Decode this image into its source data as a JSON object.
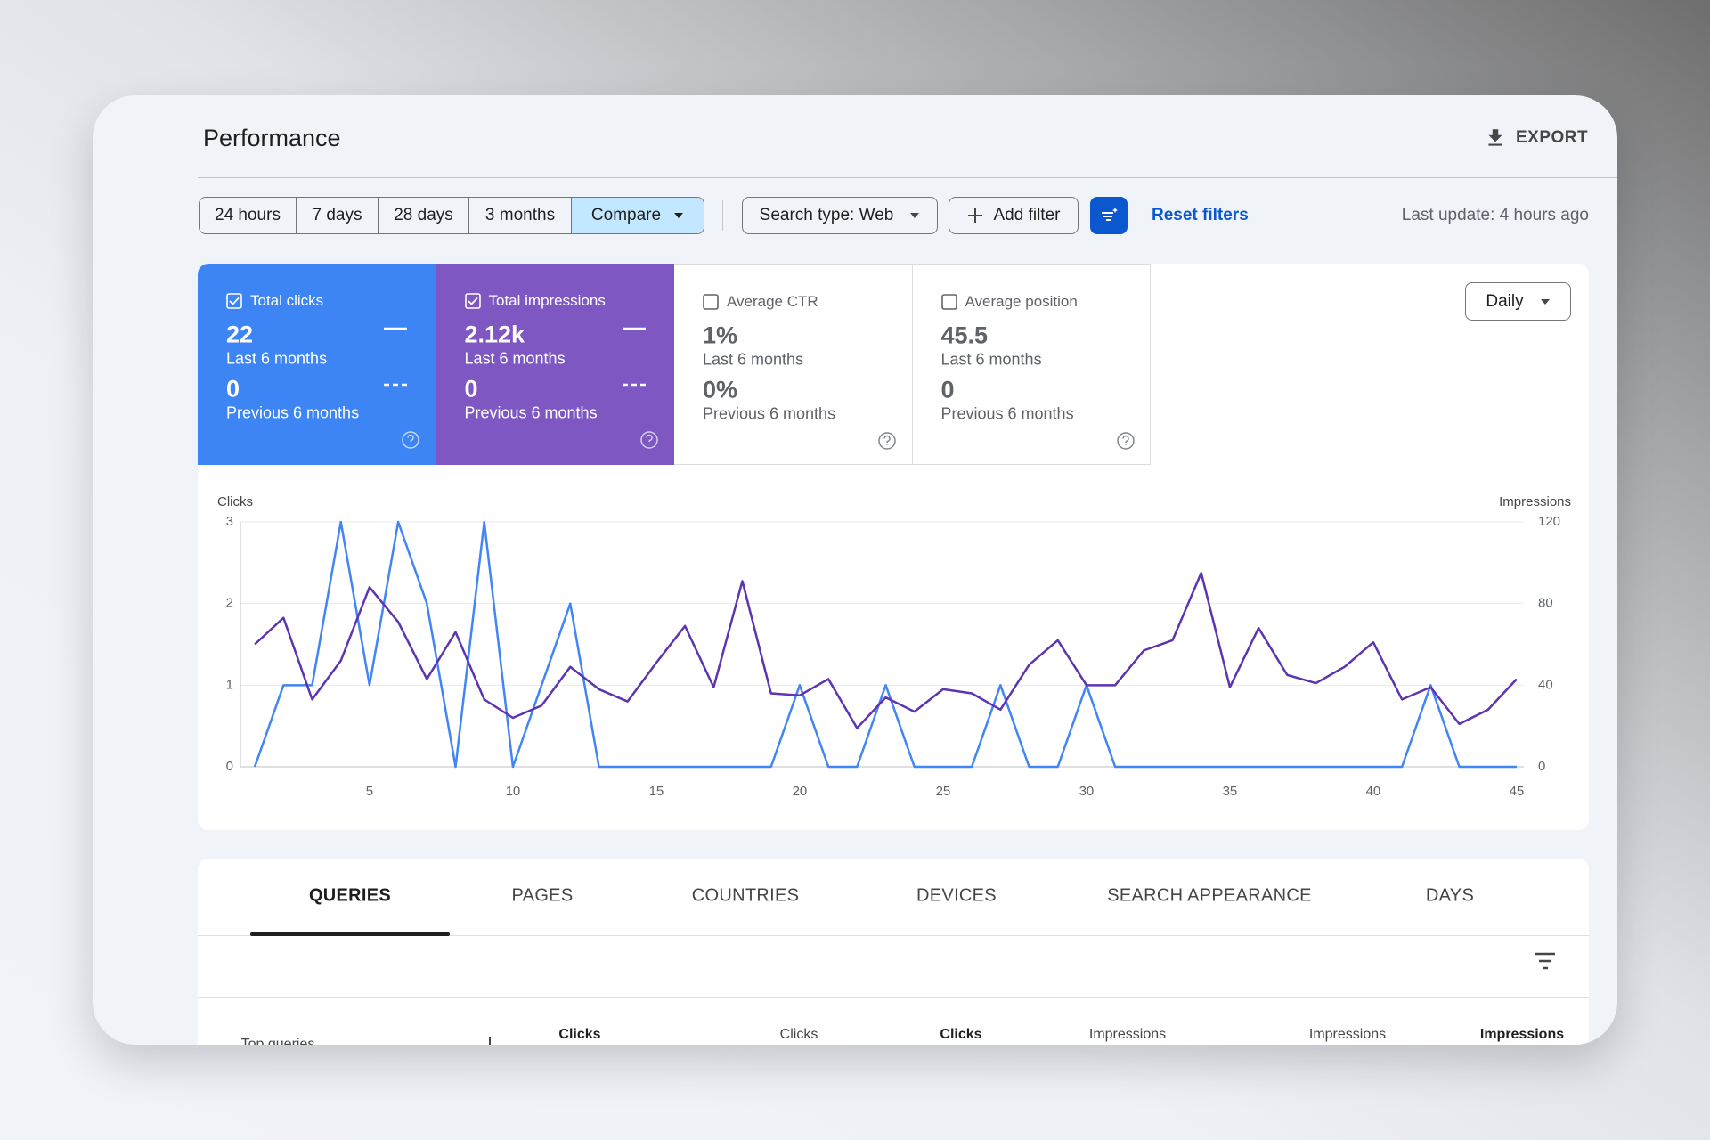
{
  "header": {
    "title": "Performance",
    "export": "EXPORT"
  },
  "filters": {
    "ranges": [
      "24 hours",
      "7 days",
      "28 days",
      "3 months",
      "Compare"
    ],
    "active_range": 4,
    "search_type": "Search type: Web",
    "add_filter": "Add filter",
    "reset": "Reset filters",
    "last_update": "Last update: 4 hours ago"
  },
  "metrics": [
    {
      "label": "Total clicks",
      "value": "22",
      "period": "Last 6 months",
      "previous_value": "0",
      "previous_period": "Previous 6 months",
      "checked": true,
      "color": "#3d84f5"
    },
    {
      "label": "Total impressions",
      "value": "2.12k",
      "period": "Last 6 months",
      "previous_value": "0",
      "previous_period": "Previous 6 months",
      "checked": true,
      "color": "#7e57c2"
    },
    {
      "label": "Average CTR",
      "value": "1%",
      "period": "Last 6 months",
      "previous_value": "0%",
      "previous_period": "Previous 6 months",
      "checked": false
    },
    {
      "label": "Average position",
      "value": "45.5",
      "period": "Last 6 months",
      "previous_value": "0",
      "previous_period": "Previous 6 months",
      "checked": false
    }
  ],
  "granularity": "Daily",
  "chart_data": {
    "type": "line",
    "x": [
      1,
      2,
      3,
      4,
      5,
      6,
      7,
      8,
      9,
      10,
      11,
      12,
      13,
      14,
      15,
      16,
      17,
      18,
      19,
      20,
      21,
      22,
      23,
      24,
      25,
      26,
      27,
      28,
      29,
      30,
      31,
      32,
      33,
      34,
      35,
      36,
      37,
      38,
      39,
      40,
      41,
      42,
      43,
      44,
      45
    ],
    "series": [
      {
        "name": "Clicks",
        "color": "#4285f4",
        "values": [
          0,
          1,
          1,
          3,
          1,
          3,
          2,
          0,
          3,
          0,
          1,
          2,
          0,
          0,
          0,
          0,
          0,
          0,
          0,
          1,
          0,
          0,
          1,
          0,
          0,
          0,
          1,
          0,
          0,
          1,
          0,
          0,
          0,
          0,
          0,
          0,
          0,
          0,
          0,
          0,
          0,
          1,
          0,
          0,
          0
        ]
      },
      {
        "name": "Impressions",
        "color": "#5e35b1",
        "axis": "y2",
        "values": [
          60,
          73,
          33,
          52,
          88,
          71,
          43,
          66,
          33,
          24,
          30,
          49,
          38,
          32,
          51,
          69,
          39,
          91,
          36,
          35,
          43,
          19,
          34,
          27,
          38,
          36,
          28,
          50,
          62,
          40,
          40,
          57,
          62,
          95,
          39,
          68,
          45,
          41,
          49,
          61,
          33,
          39,
          21,
          28,
          43
        ]
      }
    ],
    "xlim": [
      0.5,
      45.25
    ],
    "xticks": [
      5,
      10,
      15,
      20,
      25,
      30,
      35,
      40,
      45
    ],
    "ylim": [
      0,
      3
    ],
    "yticks": [
      0,
      1,
      2,
      3
    ],
    "y2lim": [
      0,
      120
    ],
    "y2ticks": [
      0,
      40,
      80,
      120
    ],
    "grid": true
  },
  "tabs": {
    "items": [
      "QUERIES",
      "PAGES",
      "COUNTRIES",
      "DEVICES",
      "SEARCH APPEARANCE",
      "DAYS"
    ],
    "active": 0
  },
  "table": {
    "columns": [
      "Top queries",
      "Clicks",
      "Clicks",
      "Clicks",
      "Impressions",
      "Impressions",
      "Impressions"
    ]
  }
}
